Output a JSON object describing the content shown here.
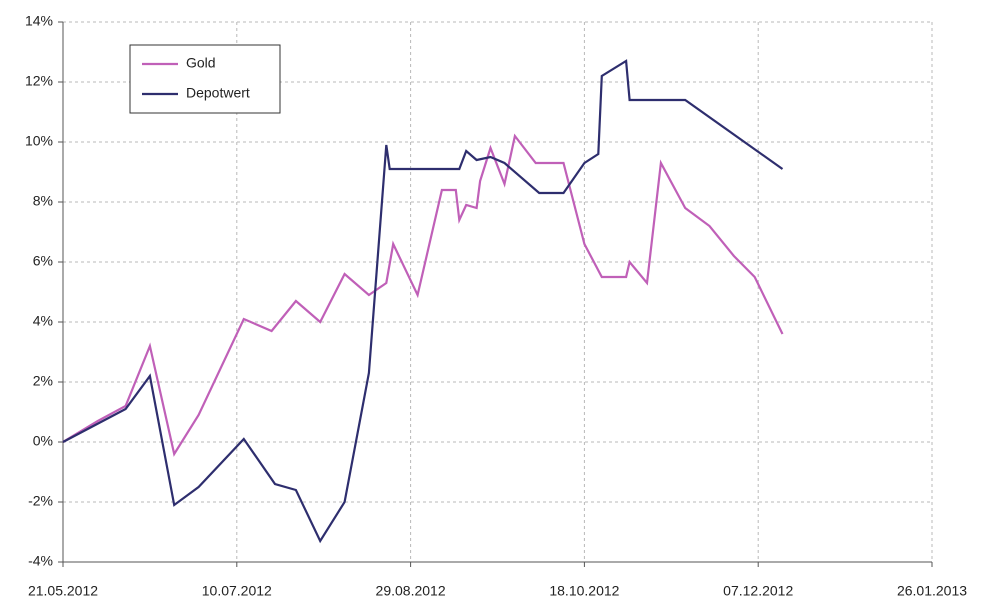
{
  "chart_data": {
    "type": "line",
    "xlim": [
      "21.05.2012",
      "26.01.2013"
    ],
    "xticks": [
      "21.05.2012",
      "10.07.2012",
      "29.08.2012",
      "18.10.2012",
      "07.12.2012",
      "26.01.2013"
    ],
    "ylim": [
      -4,
      14
    ],
    "yticks": [
      {
        "value": -4,
        "label": "-4%"
      },
      {
        "value": -2,
        "label": "-2%"
      },
      {
        "value": 0,
        "label": "0%"
      },
      {
        "value": 2,
        "label": "2%"
      },
      {
        "value": 4,
        "label": "4%"
      },
      {
        "value": 6,
        "label": "6%"
      },
      {
        "value": 8,
        "label": "8%"
      },
      {
        "value": 10,
        "label": "10%"
      },
      {
        "value": 12,
        "label": "12%"
      },
      {
        "value": 14,
        "label": "14%"
      }
    ],
    "grid": true,
    "legend": "upper left",
    "series": [
      {
        "name": "Gold",
        "color": "#c060b8",
        "x": [
          "21.05.2012",
          "31.05.2012",
          "08.06.2012",
          "15.06.2012",
          "22.06.2012",
          "29.06.2012",
          "12.07.2012",
          "20.07.2012",
          "27.07.2012",
          "03.08.2012",
          "10.08.2012",
          "17.08.2012",
          "22.08.2012",
          "24.08.2012",
          "31.08.2012",
          "07.09.2012",
          "11.09.2012",
          "12.09.2012",
          "14.09.2012",
          "17.09.2012",
          "18.09.2012",
          "21.09.2012",
          "25.09.2012",
          "28.09.2012",
          "04.10.2012",
          "12.10.2012",
          "18.10.2012",
          "23.10.2012",
          "30.10.2012",
          "31.10.2012",
          "05.11.2012",
          "09.11.2012",
          "16.11.2012",
          "23.11.2012",
          "30.11.2012",
          "06.12.2012",
          "14.12.2012"
        ],
        "values": [
          0,
          0.7,
          1.2,
          3.2,
          -0.4,
          0.9,
          4.1,
          3.7,
          4.7,
          4.0,
          5.6,
          4.9,
          5.3,
          6.6,
          4.9,
          8.4,
          8.4,
          7.4,
          7.9,
          7.8,
          8.7,
          9.8,
          8.6,
          10.2,
          9.3,
          9.3,
          6.6,
          5.5,
          5.5,
          6.0,
          5.3,
          9.3,
          7.8,
          7.2,
          6.2,
          5.5,
          3.6
        ]
      },
      {
        "name": "Depotwert",
        "color": "#2e2e6e",
        "x": [
          "21.05.2012",
          "08.06.2012",
          "15.06.2012",
          "22.06.2012",
          "29.06.2012",
          "12.07.2012",
          "21.07.2012",
          "27.07.2012",
          "03.08.2012",
          "10.08.2012",
          "17.08.2012",
          "22.08.2012",
          "23.08.2012",
          "12.09.2012",
          "14.09.2012",
          "17.09.2012",
          "21.09.2012",
          "25.09.2012",
          "05.10.2012",
          "12.10.2012",
          "18.10.2012",
          "22.10.2012",
          "23.10.2012",
          "30.10.2012",
          "31.10.2012",
          "16.11.2012",
          "14.12.2012"
        ],
        "values": [
          0,
          1.1,
          2.2,
          -2.1,
          -1.5,
          0.1,
          -1.4,
          -1.6,
          -3.3,
          -2.0,
          2.3,
          9.9,
          9.1,
          9.1,
          9.7,
          9.4,
          9.5,
          9.3,
          8.3,
          8.3,
          9.3,
          9.6,
          12.2,
          12.7,
          11.4,
          11.4,
          9.1
        ]
      }
    ]
  }
}
